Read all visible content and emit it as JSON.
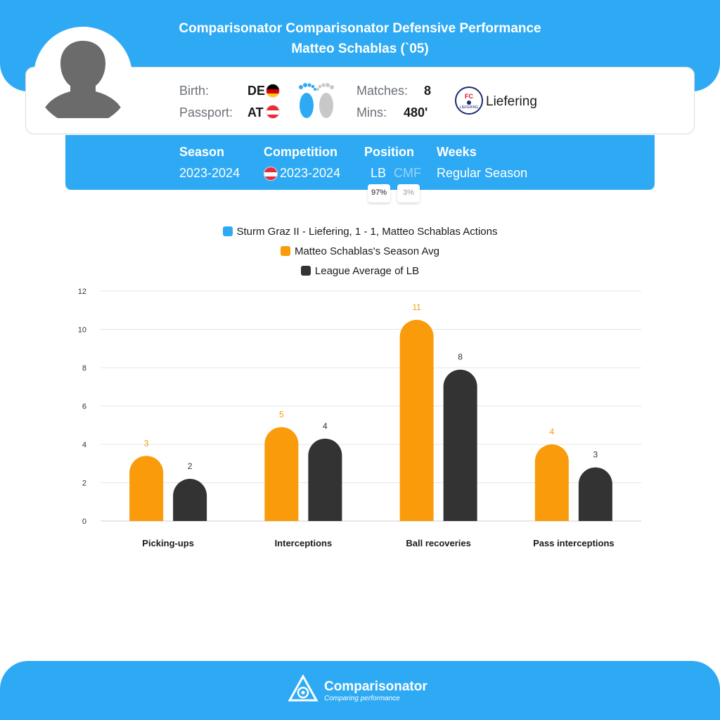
{
  "header": {
    "title_line1": "Comparisonator Comparisonator Defensive Performance",
    "title_line2": "Matteo Schablas (`05)"
  },
  "player": {
    "birth_label": "Birth:",
    "birth_value": "DE",
    "passport_label": "Passport:",
    "passport_value": "AT",
    "matches_label": "Matches:",
    "matches_value": "8",
    "mins_label": "Mins:",
    "mins_value": "480'",
    "club": "Liefering",
    "club_badge_text": "FC",
    "club_badge_subtext": "LIEFERING"
  },
  "season": {
    "season_label": "Season",
    "season_value": "2023-2024",
    "competition_label": "Competition",
    "competition_value": "2023-2024",
    "position_label": "Position",
    "position_primary": "LB",
    "position_primary_pct": "97%",
    "position_secondary": "CMF",
    "position_secondary_pct": "3%",
    "weeks_label": "Weeks",
    "weeks_value": "Regular Season"
  },
  "colors": {
    "brand_blue": "#2eaaf5",
    "season_avg": "#f99b0b",
    "league_avg": "#333333",
    "grid": "#e5e5e5"
  },
  "chart_data": {
    "type": "bar",
    "legend": [
      {
        "name": "Sturm Graz II - Liefering, 1 - 1, Matteo Schablas Actions",
        "color": "#2eaaf5"
      },
      {
        "name": "Matteo Schablas's Season Avg",
        "color": "#f99b0b"
      },
      {
        "name": "League Average of LB",
        "color": "#333333"
      }
    ],
    "categories": [
      "Picking-ups",
      "Interceptions",
      "Ball recoveries",
      "Pass interceptions"
    ],
    "series": [
      {
        "name": "Sturm Graz II - Liefering, 1 - 1, Matteo Schablas Actions",
        "values": [
          0,
          0,
          0,
          0
        ],
        "labels": [
          "",
          "",
          "",
          ""
        ]
      },
      {
        "name": "Matteo Schablas's Season Avg",
        "values": [
          3.4,
          4.9,
          10.5,
          4.0
        ],
        "labels": [
          "3",
          "5",
          "11",
          "4"
        ]
      },
      {
        "name": "League Average of LB",
        "values": [
          2.2,
          4.3,
          7.9,
          2.8
        ],
        "labels": [
          "2",
          "4",
          "8",
          "3"
        ]
      }
    ],
    "yticks": [
      0,
      2,
      4,
      6,
      8,
      10,
      12
    ],
    "ylim": [
      0,
      12
    ],
    "grid": true,
    "legend_placement": "top-center"
  },
  "footer": {
    "brand": "Comparisonator",
    "tagline": "Comparing performance"
  }
}
